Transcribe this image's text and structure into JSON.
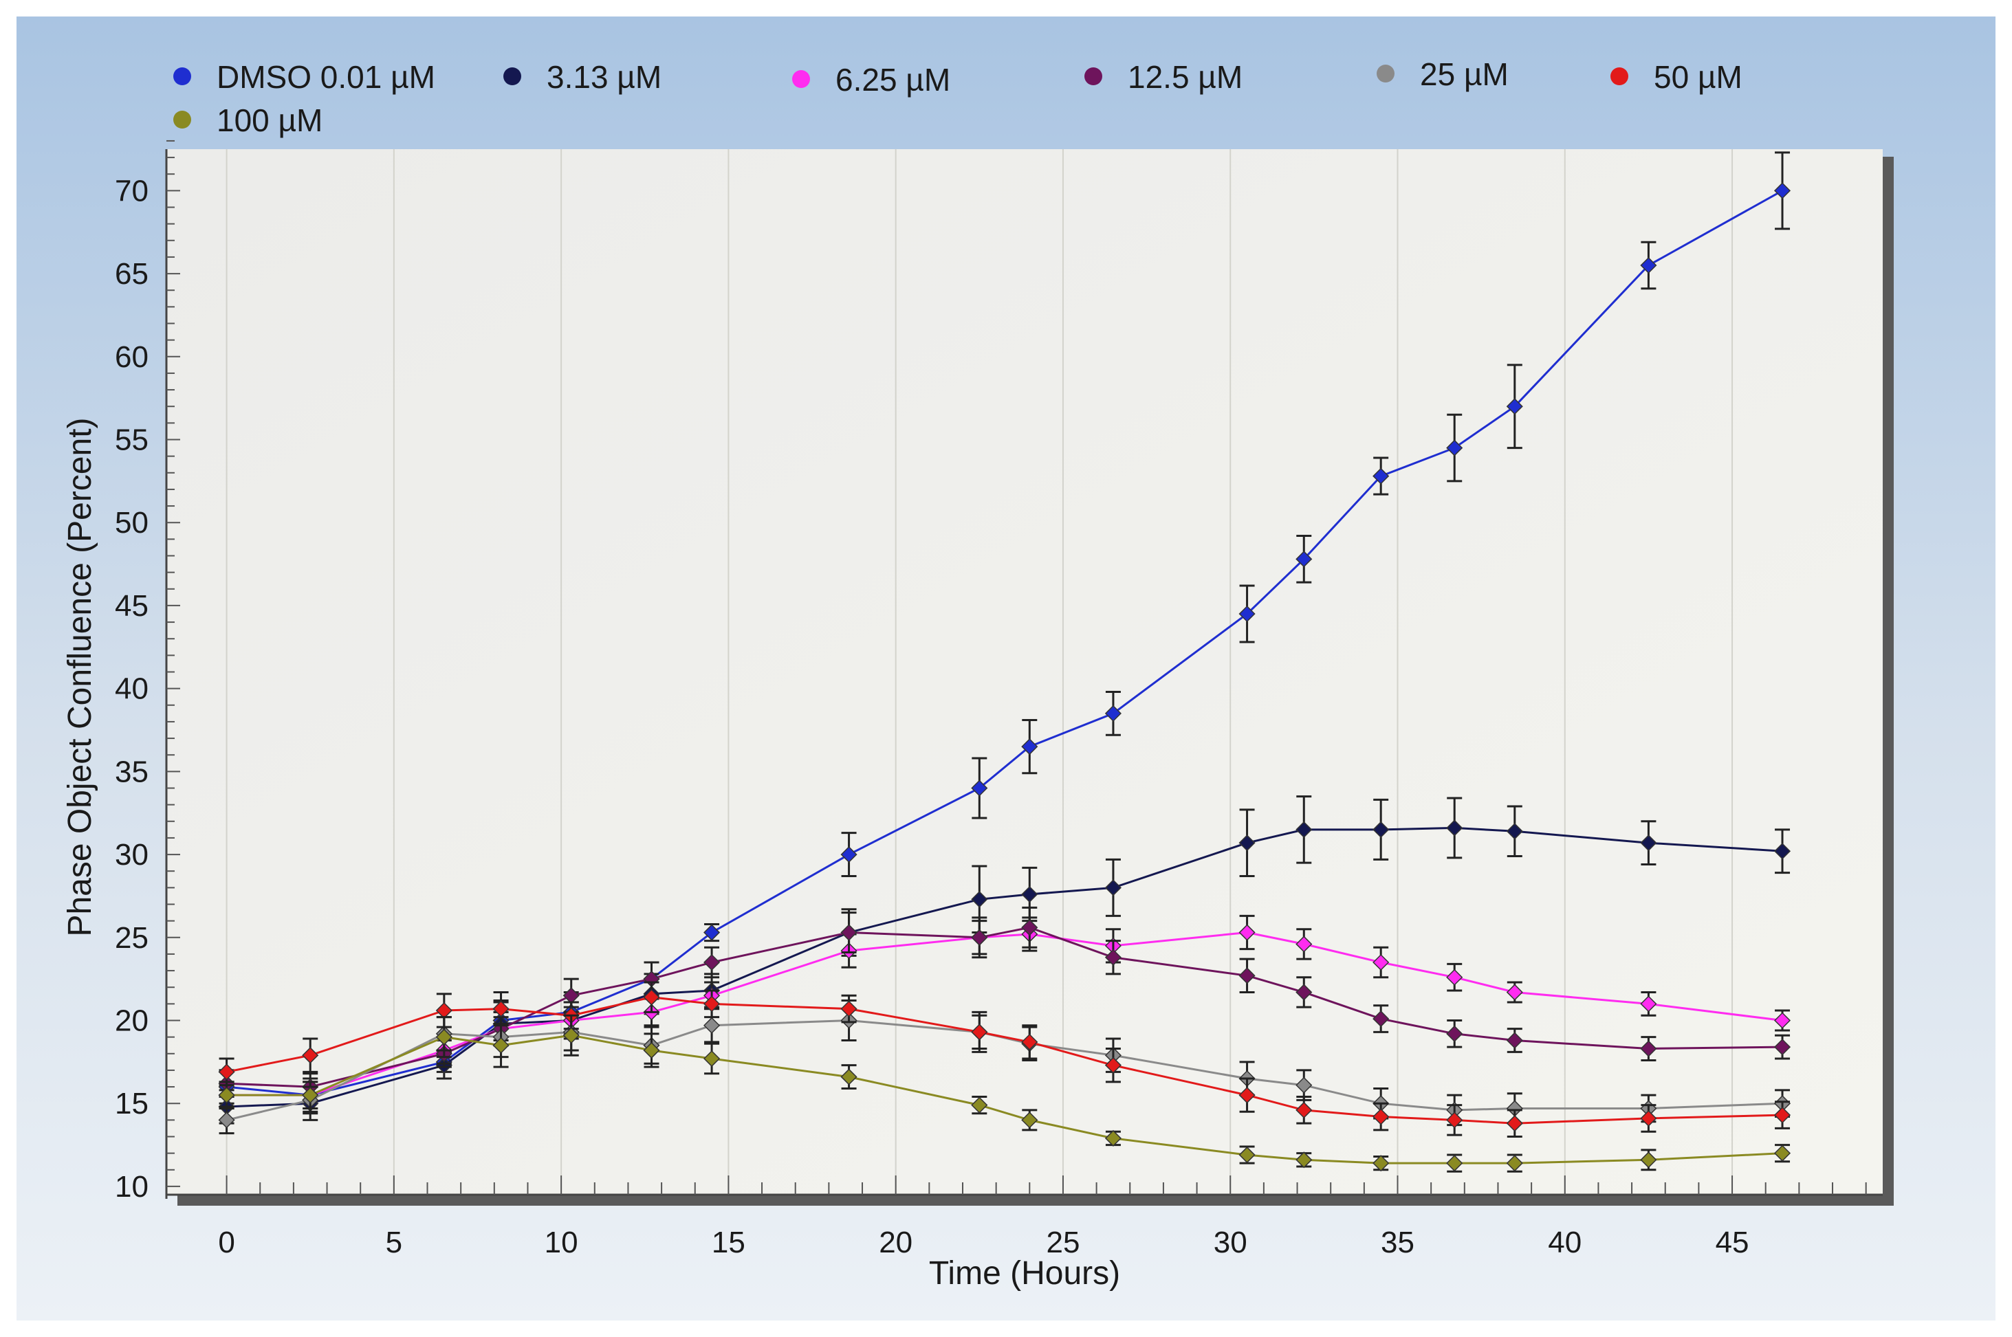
{
  "chart_data": {
    "type": "line",
    "title": "",
    "xlabel": "Time (Hours)",
    "ylabel": "Phase Object Confluence (Percent)",
    "xlim": [
      -1.8,
      49.5
    ],
    "ylim": [
      9.5,
      72.5
    ],
    "x_ticks": [
      0,
      5,
      10,
      15,
      20,
      25,
      30,
      35,
      40,
      45
    ],
    "y_ticks": [
      10,
      15,
      20,
      25,
      30,
      35,
      40,
      45,
      50,
      55,
      60,
      65,
      70
    ],
    "grid": true,
    "legend_position": "top",
    "error_bars": true,
    "x": [
      0,
      2.5,
      6.5,
      8.2,
      10.3,
      12.7,
      14.5,
      18.6,
      22.5,
      24,
      26.5,
      30.5,
      32.2,
      34.5,
      36.7,
      38.5,
      42.5,
      46.5
    ],
    "series": [
      {
        "name": "DMSO 0.01 µM",
        "color": "#1f2ed0",
        "values": [
          16,
          15.5,
          17.5,
          20,
          20.5,
          22.5,
          25.3,
          30,
          34,
          36.5,
          38.5,
          44.5,
          47.8,
          52.8,
          54.5,
          57,
          65.5,
          70
        ],
        "errors": [
          1,
          1,
          0.6,
          1.2,
          1.2,
          1,
          0.5,
          1.3,
          1.8,
          1.6,
          1.3,
          1.7,
          1.4,
          1.1,
          2,
          2.5,
          1.4,
          2.3
        ]
      },
      {
        "name": "3.13 µM",
        "color": "#141850",
        "values": [
          14.8,
          15,
          17.3,
          19.8,
          20,
          21.6,
          21.8,
          25.3,
          27.3,
          27.6,
          28,
          30.7,
          31.5,
          31.5,
          31.6,
          31.4,
          30.7,
          30.2
        ],
        "errors": [
          1,
          1,
          0.8,
          1.3,
          1.1,
          1.2,
          1,
          1.4,
          2,
          1.6,
          1.7,
          2,
          2,
          1.8,
          1.8,
          1.5,
          1.3,
          1.3
        ]
      },
      {
        "name": "6.25 µM",
        "color": "#ff2cf0",
        "values": [
          15.5,
          15.5,
          18.2,
          19.5,
          20,
          20.5,
          21.5,
          24.2,
          25,
          25.2,
          24.5,
          25.3,
          24.6,
          23.5,
          22.6,
          21.7,
          21,
          20
        ],
        "errors": [
          0.8,
          0.8,
          0.8,
          1,
          0.8,
          0.8,
          0.8,
          1,
          1,
          1,
          1,
          1,
          0.9,
          0.9,
          0.8,
          0.6,
          0.7,
          0.6
        ]
      },
      {
        "name": "12.5 µM",
        "color": "#6e145c",
        "values": [
          16.2,
          16,
          18,
          19.5,
          21.5,
          22.5,
          23.5,
          25.3,
          25,
          25.6,
          23.8,
          22.7,
          21.7,
          20.1,
          19.2,
          18.8,
          18.3,
          18.4
        ],
        "errors": [
          0.8,
          0.8,
          0.8,
          1,
          1,
          1,
          0.9,
          1.2,
          1.2,
          1.2,
          1,
          1,
          0.9,
          0.8,
          0.8,
          0.7,
          0.7,
          0.7
        ]
      },
      {
        "name": "25 µM",
        "color": "#8a8a8a",
        "values": [
          14,
          15.2,
          19.2,
          19,
          19.3,
          18.5,
          19.7,
          20,
          19.3,
          18.6,
          17.9,
          16.5,
          16.1,
          15,
          14.6,
          14.7,
          14.7,
          15
        ],
        "errors": [
          0.8,
          0.8,
          1,
          1.2,
          1.1,
          1.1,
          1,
          1.2,
          1.2,
          1,
          1,
          1,
          0.9,
          0.9,
          0.9,
          0.9,
          0.8,
          0.8
        ]
      },
      {
        "name": "50 µM",
        "color": "#e21a1a",
        "values": [
          16.9,
          17.9,
          20.6,
          20.7,
          20.3,
          21.4,
          21,
          20.7,
          19.3,
          18.7,
          17.3,
          15.5,
          14.6,
          14.2,
          14,
          13.8,
          14.1,
          14.3
        ],
        "errors": [
          0.8,
          1,
          1,
          1,
          0.8,
          0.9,
          0.8,
          0.8,
          1,
          1,
          1,
          1,
          0.8,
          0.8,
          0.9,
          0.8,
          0.8,
          0.8
        ]
      },
      {
        "name": "100 µM",
        "color": "#8a8a22",
        "values": [
          15.5,
          15.5,
          19,
          18.5,
          19.1,
          18.2,
          17.7,
          16.6,
          14.9,
          14,
          12.9,
          11.9,
          11.6,
          11.4,
          11.4,
          11.4,
          11.6,
          12
        ],
        "errors": [
          0.8,
          0.8,
          1.2,
          1.3,
          1.2,
          1,
          0.9,
          0.7,
          0.5,
          0.6,
          0.4,
          0.5,
          0.4,
          0.4,
          0.5,
          0.5,
          0.6,
          0.5
        ]
      }
    ]
  }
}
